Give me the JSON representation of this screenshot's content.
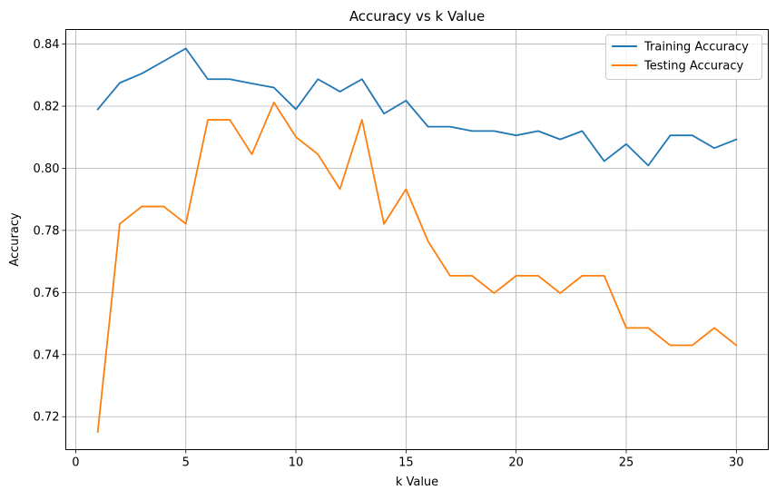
{
  "chart_data": {
    "type": "line",
    "title": "Accuracy vs k Value",
    "xlabel": "k Value",
    "ylabel": "Accuracy",
    "xlim": [
      -0.45,
      31.45
    ],
    "ylim": [
      0.7094,
      0.8447
    ],
    "x_ticks": [
      0,
      5,
      10,
      15,
      20,
      25,
      30
    ],
    "y_ticks": [
      0.72,
      0.74,
      0.76,
      0.78,
      0.8,
      0.82,
      0.84
    ],
    "grid": true,
    "legend_position": "top-right",
    "x": [
      1,
      2,
      3,
      4,
      5,
      6,
      7,
      8,
      9,
      10,
      11,
      12,
      13,
      14,
      15,
      16,
      17,
      18,
      19,
      20,
      21,
      22,
      23,
      24,
      25,
      26,
      27,
      28,
      29,
      30
    ],
    "series": [
      {
        "name": "Training Accuracy",
        "color": "#1f77b4",
        "values": [
          0.819,
          0.8275,
          0.8305,
          0.8345,
          0.8386,
          0.8287,
          0.8287,
          0.8273,
          0.826,
          0.819,
          0.8287,
          0.8247,
          0.8287,
          0.8176,
          0.8218,
          0.8134,
          0.8134,
          0.812,
          0.812,
          0.8106,
          0.812,
          0.8093,
          0.812,
          0.8023,
          0.8078,
          0.8009,
          0.8106,
          0.8106,
          0.8065,
          0.8093
        ]
      },
      {
        "name": "Testing Accuracy",
        "color": "#ff7f0e",
        "values": [
          0.7151,
          0.7821,
          0.7877,
          0.7877,
          0.7821,
          0.8156,
          0.8156,
          0.8045,
          0.8212,
          0.8101,
          0.8045,
          0.7933,
          0.8156,
          0.7821,
          0.7933,
          0.7765,
          0.7654,
          0.7654,
          0.7598,
          0.7654,
          0.7654,
          0.7598,
          0.7654,
          0.7654,
          0.7486,
          0.7486,
          0.743,
          0.743,
          0.7486,
          0.743
        ]
      }
    ]
  }
}
